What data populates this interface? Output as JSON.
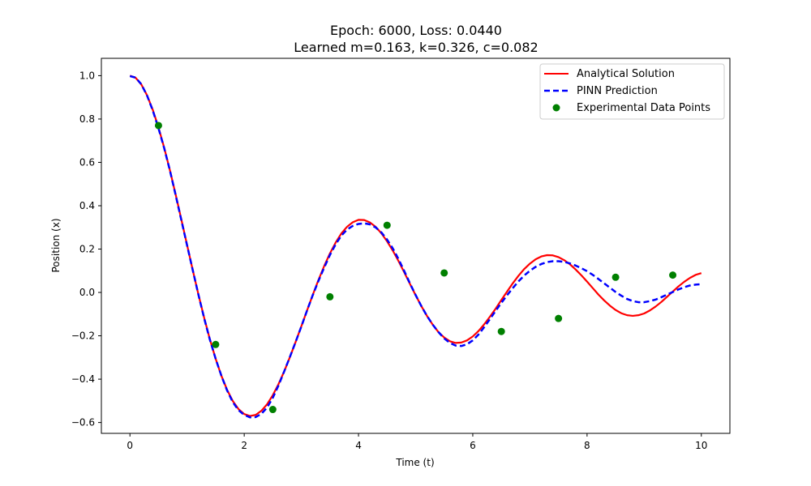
{
  "chart_data": {
    "type": "line",
    "title": "Epoch: 6000, Loss: 0.0440",
    "subtitle": "Learned m=0.163, k=0.326, c=0.082",
    "xlabel": "Time (t)",
    "ylabel": "Position (x)",
    "xlim": [
      -0.5,
      10.5
    ],
    "ylim": [
      -0.65,
      1.08
    ],
    "xticks": [
      0,
      2,
      4,
      6,
      8,
      10
    ],
    "xtick_labels": [
      "0",
      "2",
      "4",
      "6",
      "8",
      "10"
    ],
    "yticks": [
      -0.6,
      -0.4,
      -0.2,
      0.0,
      0.2,
      0.4,
      0.6,
      0.8,
      1.0
    ],
    "ytick_labels": [
      "−0.6",
      "−0.4",
      "−0.2",
      "0.0",
      "0.2",
      "0.4",
      "0.6",
      "0.8",
      "1.0"
    ],
    "grid": false,
    "legend_position": "top-right",
    "series": [
      {
        "name": "Analytical Solution",
        "style": "solid",
        "color": "#ff0000",
        "x": [
          0,
          0.1,
          0.2,
          0.3,
          0.4,
          0.5,
          0.6,
          0.7,
          0.8,
          0.9,
          1.0,
          1.1,
          1.2,
          1.3,
          1.4,
          1.5,
          1.6,
          1.7,
          1.8,
          1.9,
          2.0,
          2.1,
          2.2,
          2.3,
          2.4,
          2.5,
          2.6,
          2.7,
          2.8,
          2.9,
          3.0,
          3.1,
          3.2,
          3.3,
          3.4,
          3.5,
          3.6,
          3.7,
          3.8,
          3.9,
          4.0,
          4.1,
          4.2,
          4.3,
          4.4,
          4.5,
          4.6,
          4.7,
          4.8,
          4.9,
          5.0,
          5.1,
          5.2,
          5.3,
          5.4,
          5.5,
          5.6,
          5.7,
          5.8,
          5.9,
          6.0,
          6.1,
          6.2,
          6.3,
          6.4,
          6.5,
          6.6,
          6.7,
          6.8,
          6.9,
          7.0,
          7.1,
          7.2,
          7.3,
          7.4,
          7.5,
          7.6,
          7.7,
          7.8,
          7.9,
          8.0,
          8.1,
          8.2,
          8.3,
          8.4,
          8.5,
          8.6,
          8.7,
          8.8,
          8.9,
          9.0,
          9.1,
          9.2,
          9.3,
          9.4,
          9.5,
          9.6,
          9.7,
          9.8,
          9.9,
          10.0
        ],
        "y": [
          1.0,
          0.99,
          0.959,
          0.909,
          0.842,
          0.761,
          0.667,
          0.563,
          0.452,
          0.336,
          0.219,
          0.102,
          -0.011,
          -0.118,
          -0.217,
          -0.306,
          -0.384,
          -0.449,
          -0.501,
          -0.538,
          -0.561,
          -0.57,
          -0.565,
          -0.546,
          -0.516,
          -0.474,
          -0.423,
          -0.364,
          -0.298,
          -0.228,
          -0.156,
          -0.083,
          -0.011,
          0.058,
          0.122,
          0.18,
          0.23,
          0.272,
          0.303,
          0.324,
          0.335,
          0.334,
          0.323,
          0.303,
          0.273,
          0.236,
          0.193,
          0.145,
          0.093,
          0.04,
          -0.013,
          -0.063,
          -0.109,
          -0.149,
          -0.183,
          -0.208,
          -0.225,
          -0.233,
          -0.231,
          -0.221,
          -0.203,
          -0.178,
          -0.147,
          -0.112,
          -0.075,
          -0.035,
          0.004,
          0.042,
          0.077,
          0.108,
          0.133,
          0.153,
          0.166,
          0.172,
          0.171,
          0.163,
          0.149,
          0.13,
          0.106,
          0.079,
          0.05,
          0.02,
          -0.01,
          -0.037,
          -0.061,
          -0.081,
          -0.096,
          -0.105,
          -0.108,
          -0.105,
          -0.097,
          -0.083,
          -0.065,
          -0.044,
          -0.02,
          0.004,
          0.028,
          0.049,
          0.067,
          0.081,
          0.089
        ]
      },
      {
        "name": "PINN Prediction",
        "style": "dashed",
        "color": "#0000ff",
        "x": [
          0,
          0.1,
          0.2,
          0.3,
          0.4,
          0.5,
          0.6,
          0.7,
          0.8,
          0.9,
          1.0,
          1.1,
          1.2,
          1.3,
          1.4,
          1.5,
          1.6,
          1.7,
          1.8,
          1.9,
          2.0,
          2.1,
          2.2,
          2.3,
          2.4,
          2.5,
          2.6,
          2.7,
          2.8,
          2.9,
          3.0,
          3.1,
          3.2,
          3.3,
          3.4,
          3.5,
          3.6,
          3.7,
          3.8,
          3.9,
          4.0,
          4.1,
          4.2,
          4.3,
          4.4,
          4.5,
          4.6,
          4.7,
          4.8,
          4.9,
          5.0,
          5.1,
          5.2,
          5.3,
          5.4,
          5.5,
          5.6,
          5.7,
          5.8,
          5.9,
          6.0,
          6.1,
          6.2,
          6.3,
          6.4,
          6.5,
          6.6,
          6.7,
          6.8,
          6.9,
          7.0,
          7.1,
          7.2,
          7.3,
          7.4,
          7.5,
          7.6,
          7.7,
          7.8,
          7.9,
          8.0,
          8.1,
          8.2,
          8.3,
          8.4,
          8.5,
          8.6,
          8.7,
          8.8,
          8.9,
          9.0,
          9.1,
          9.2,
          9.3,
          9.4,
          9.5,
          9.6,
          9.7,
          9.8,
          9.9,
          10.0
        ],
        "y": [
          0.998,
          0.991,
          0.96,
          0.908,
          0.839,
          0.757,
          0.665,
          0.562,
          0.449,
          0.333,
          0.217,
          0.102,
          -0.012,
          -0.12,
          -0.219,
          -0.306,
          -0.384,
          -0.452,
          -0.506,
          -0.543,
          -0.565,
          -0.576,
          -0.575,
          -0.56,
          -0.531,
          -0.486,
          -0.429,
          -0.364,
          -0.297,
          -0.228,
          -0.157,
          -0.083,
          -0.012,
          0.054,
          0.115,
          0.173,
          0.222,
          0.262,
          0.29,
          0.307,
          0.316,
          0.319,
          0.314,
          0.3,
          0.277,
          0.244,
          0.203,
          0.154,
          0.099,
          0.042,
          -0.012,
          -0.063,
          -0.109,
          -0.149,
          -0.183,
          -0.212,
          -0.233,
          -0.245,
          -0.247,
          -0.239,
          -0.221,
          -0.194,
          -0.16,
          -0.123,
          -0.085,
          -0.048,
          -0.013,
          0.02,
          0.051,
          0.078,
          0.1,
          0.118,
          0.131,
          0.14,
          0.144,
          0.144,
          0.141,
          0.134,
          0.124,
          0.112,
          0.098,
          0.081,
          0.062,
          0.042,
          0.022,
          0.002,
          -0.015,
          -0.03,
          -0.04,
          -0.045,
          -0.045,
          -0.04,
          -0.033,
          -0.022,
          -0.01,
          0.002,
          0.014,
          0.024,
          0.032,
          0.036,
          0.038
        ]
      }
    ],
    "scatter": {
      "name": "Experimental Data Points",
      "color": "#008000",
      "x": [
        0.5,
        1.5,
        2.5,
        3.5,
        4.5,
        5.5,
        6.5,
        7.5,
        8.5,
        9.5
      ],
      "y": [
        0.77,
        -0.24,
        -0.54,
        -0.02,
        0.31,
        0.09,
        -0.18,
        -0.12,
        0.07,
        0.08
      ]
    }
  }
}
